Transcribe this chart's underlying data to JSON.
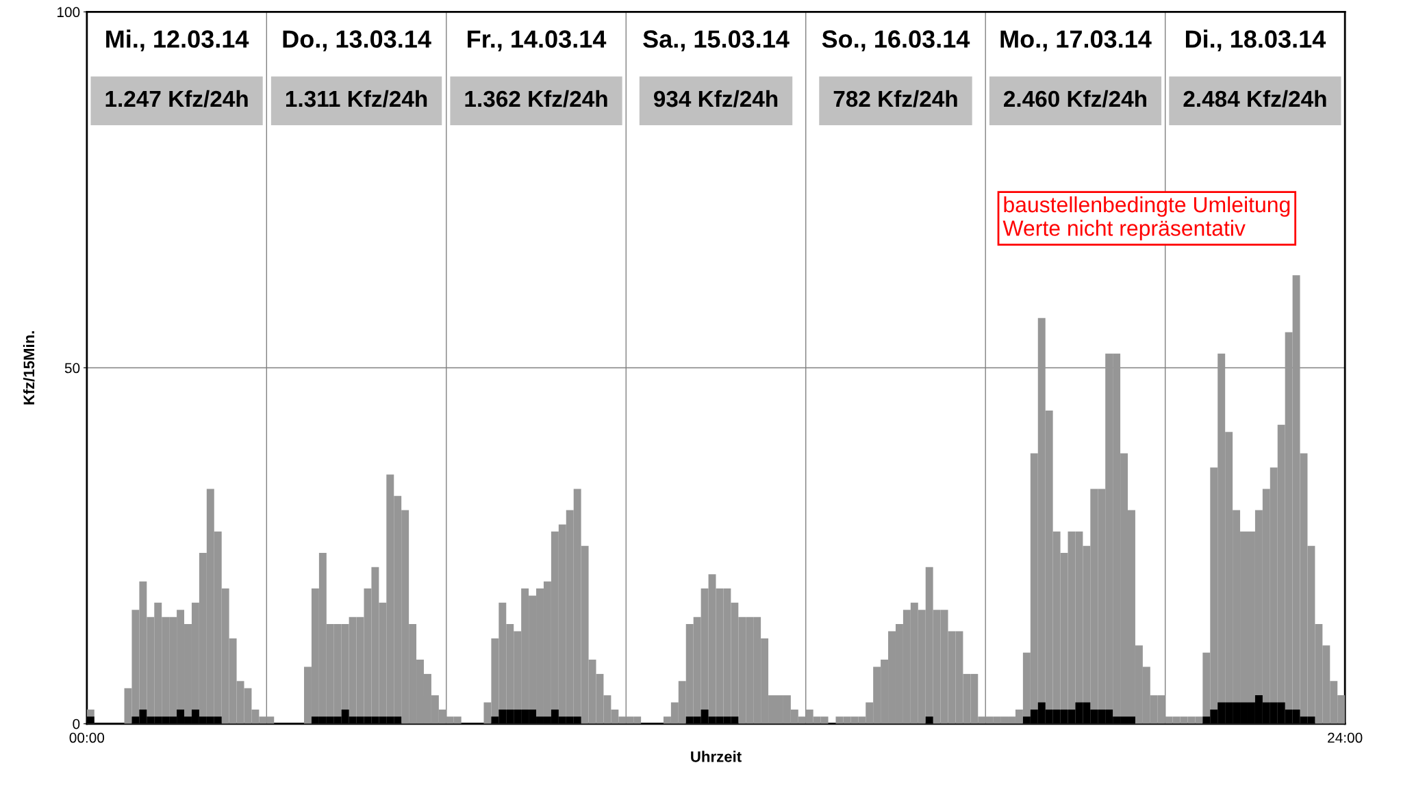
{
  "chart_data": {
    "type": "bar",
    "xlabel": "Uhrzeit",
    "ylabel": "Kfz/15Min.",
    "categories": [
      null,
      null,
      null,
      null,
      null,
      null,
      null,
      null,
      null,
      null,
      null,
      null,
      null,
      null,
      null,
      null,
      null,
      null,
      null,
      null,
      null,
      null,
      null,
      null,
      null,
      null,
      null,
      null,
      null,
      null,
      null,
      null,
      null,
      null,
      null,
      null,
      null,
      null,
      null,
      null,
      null,
      null,
      null,
      null,
      null,
      null,
      null,
      null,
      null,
      null,
      null,
      null,
      null,
      null,
      null,
      null,
      null,
      null,
      null,
      null,
      null,
      null,
      null,
      null,
      null,
      null,
      null,
      null,
      null,
      null,
      null,
      null,
      null,
      null,
      null,
      null,
      null,
      null,
      null,
      null,
      null,
      null,
      null,
      null,
      null,
      null,
      null,
      null,
      null,
      null,
      null,
      null,
      null,
      null,
      null,
      null,
      null,
      null,
      null,
      null,
      null,
      null,
      null,
      null,
      null,
      null,
      null,
      null,
      null,
      null,
      null,
      null,
      null,
      null,
      null,
      null,
      null,
      null,
      null,
      null,
      null,
      null,
      null,
      null,
      null,
      null,
      null,
      null,
      null,
      null,
      null,
      null,
      null,
      null,
      null,
      null,
      null,
      null,
      null,
      null,
      null,
      null,
      null,
      null,
      null,
      null,
      null,
      null,
      null,
      null,
      null,
      null,
      null,
      null,
      null,
      null,
      null,
      null,
      null,
      null,
      null,
      null,
      null,
      null,
      null,
      null,
      null,
      null
    ],
    "ylim": [
      0,
      100
    ],
    "yticks": [
      0,
      50,
      100
    ],
    "grid": "y",
    "annotations": [
      "Mi., 12.03.14",
      "Do., 13.03.14",
      "Fr., 14.03.14",
      "Sa., 15.03.14",
      "So., 16.03.14",
      "Mo., 17.03.14",
      "Di., 18.03.14",
      "1.247 Kfz/24h",
      "1.311 Kfz/24h",
      "1.362 Kfz/24h",
      "934 Kfz/24h",
      "782 Kfz/24h",
      "2.460 Kfz/24h",
      "2.484 Kfz/24h",
      "baustellenbedingte Umleitung\nWerte nicht repräsentativ",
      "00:00",
      "24:00"
    ],
    "series": [
      {
        "color": "#969696",
        "values": [
          2,
          0,
          0,
          0,
          0,
          5,
          16,
          20,
          15,
          17,
          15,
          15,
          16,
          14,
          17,
          24,
          33,
          27,
          19,
          12,
          6,
          5,
          2,
          1,
          1,
          0,
          0,
          0,
          0,
          8,
          19,
          24,
          14,
          14,
          14,
          15,
          15,
          19,
          22,
          17,
          35,
          32,
          30,
          14,
          9,
          7,
          4,
          2,
          1,
          1,
          0,
          0,
          0,
          3,
          12,
          17,
          14,
          13,
          19,
          18,
          19,
          20,
          27,
          28,
          30,
          33,
          25,
          9,
          7,
          4,
          2,
          1,
          1,
          1,
          0,
          0,
          0,
          1,
          3,
          6,
          14,
          15,
          19,
          21,
          19,
          19,
          17,
          15,
          15,
          15,
          12,
          4,
          4,
          4,
          2,
          1,
          2,
          1,
          1,
          0,
          1,
          1,
          1,
          1,
          3,
          8,
          9,
          13,
          14,
          16,
          17,
          16,
          22,
          16,
          16,
          13,
          13,
          7,
          7,
          1,
          1,
          1,
          1,
          1,
          2,
          10,
          38,
          57,
          44,
          27,
          24,
          27,
          27,
          25,
          33,
          33,
          52,
          52,
          38,
          30,
          11,
          8,
          4,
          4,
          1,
          1,
          1,
          1,
          1,
          10,
          36,
          52,
          41,
          30,
          27,
          27,
          30,
          33,
          36,
          42,
          55,
          63,
          38,
          25,
          14,
          11,
          6,
          4
        ]
      },
      {
        "color": "#000000",
        "values": [
          1,
          0,
          0,
          0,
          0,
          0,
          1,
          2,
          1,
          1,
          1,
          1,
          2,
          1,
          2,
          1,
          1,
          1,
          0,
          0,
          0,
          0,
          0,
          0,
          0,
          0,
          0,
          0,
          0,
          0,
          1,
          1,
          1,
          1,
          2,
          1,
          1,
          1,
          1,
          1,
          1,
          1,
          0,
          0,
          0,
          0,
          0,
          0,
          0,
          0,
          0,
          0,
          0,
          0,
          1,
          2,
          2,
          2,
          2,
          2,
          1,
          1,
          2,
          1,
          1,
          1,
          0,
          0,
          0,
          0,
          0,
          0,
          0,
          0,
          0,
          0,
          0,
          0,
          0,
          0,
          1,
          1,
          2,
          1,
          1,
          1,
          1,
          0,
          0,
          0,
          0,
          0,
          0,
          0,
          0,
          0,
          0,
          0,
          0,
          0,
          0,
          0,
          0,
          0,
          0,
          0,
          0,
          0,
          0,
          0,
          0,
          0,
          1,
          0,
          0,
          0,
          0,
          0,
          0,
          0,
          0,
          0,
          0,
          0,
          0,
          1,
          2,
          3,
          2,
          2,
          2,
          2,
          3,
          3,
          2,
          2,
          2,
          1,
          1,
          1,
          0,
          0,
          0,
          0,
          0,
          0,
          0,
          0,
          0,
          1,
          2,
          3,
          3,
          3,
          3,
          3,
          4,
          3,
          3,
          3,
          2,
          2,
          1,
          1,
          0,
          0,
          0,
          0
        ]
      }
    ]
  }
}
